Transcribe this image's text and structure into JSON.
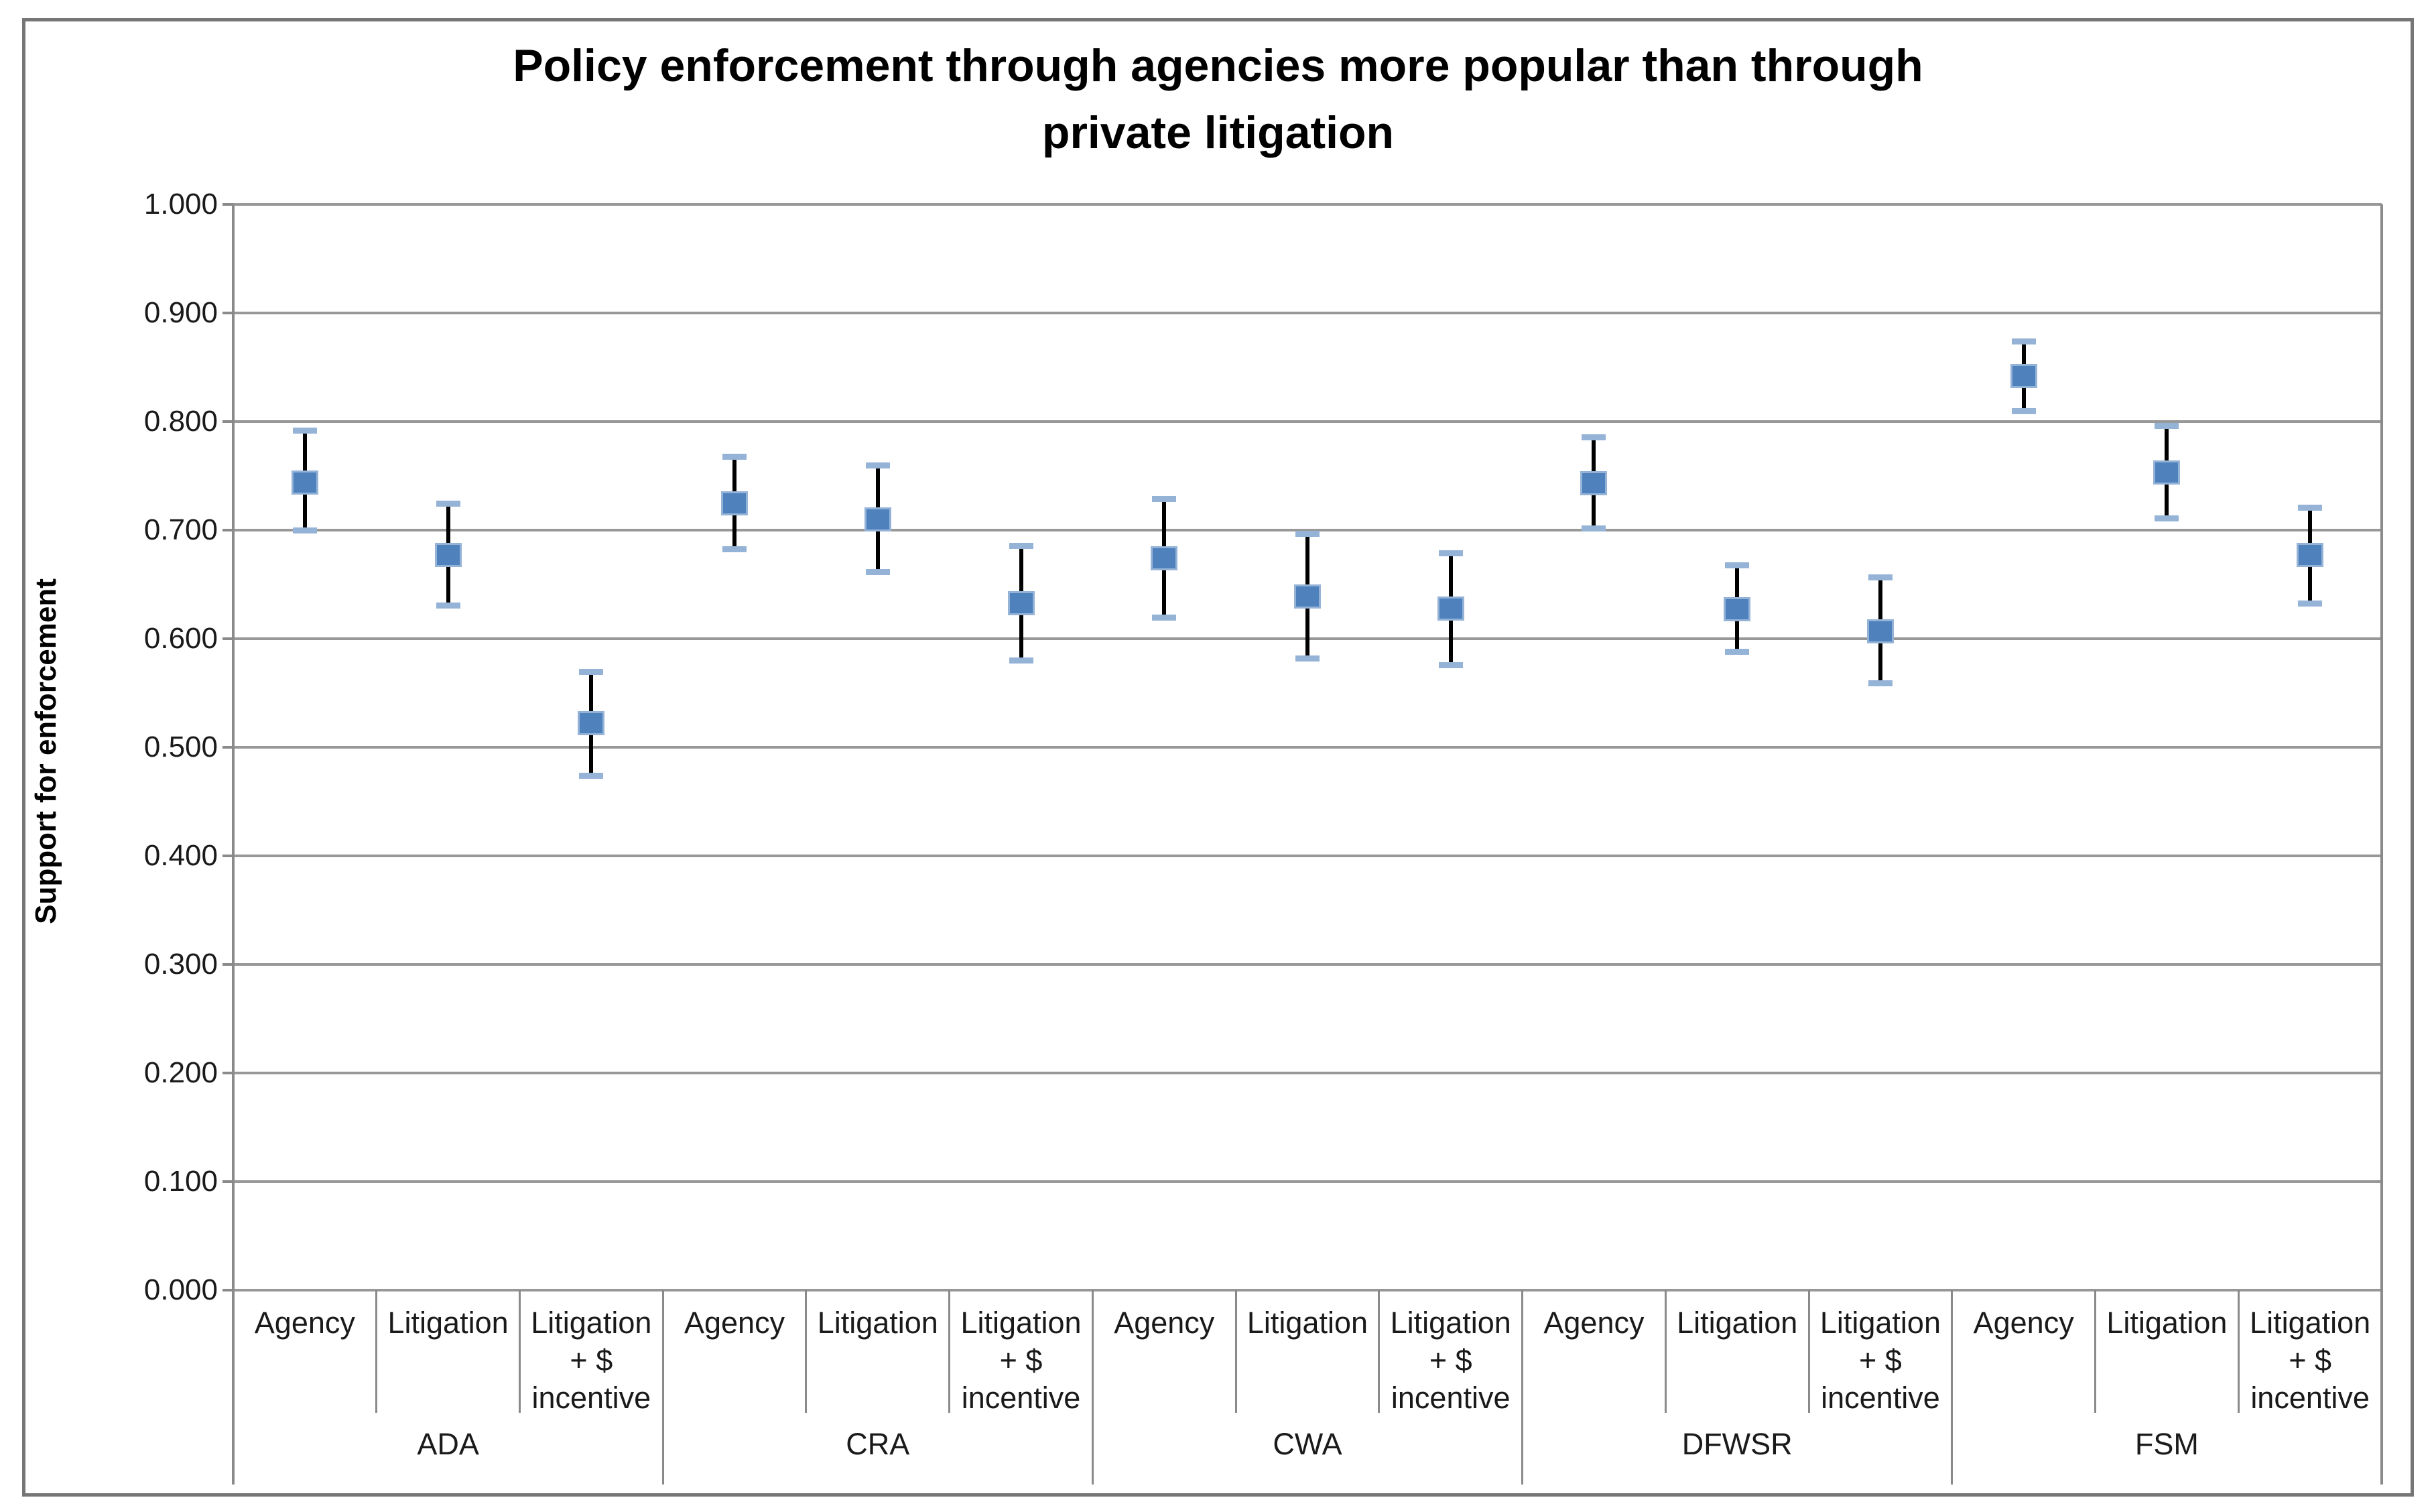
{
  "title": {
    "line1": "Policy enforcement through agencies more popular than through",
    "line2": "private litigation"
  },
  "y_axis": {
    "label": "Support for enforcement",
    "tick_labels": [
      "1.000",
      "0.900",
      "0.800",
      "0.700",
      "0.600",
      "0.500",
      "0.400",
      "0.300",
      "0.200",
      "0.100",
      "0.000"
    ]
  },
  "chart_data": {
    "type": "scatter",
    "title": "Policy enforcement through agencies more popular than through private litigation",
    "xlabel": "",
    "ylabel": "Support for enforcement",
    "ylim": [
      0.0,
      1.0
    ],
    "ytick_step": 0.1,
    "grid": true,
    "legend": false,
    "error_bars": true,
    "groups": [
      "ADA",
      "CRA",
      "CWA",
      "DFWSR",
      "FSM"
    ],
    "conditions": [
      "Agency",
      "Litigation",
      "Litigation + $ incentive"
    ],
    "condition_display_lines": [
      [
        "Agency"
      ],
      [
        "Litigation"
      ],
      [
        "Litigation",
        "+ $",
        "incentive"
      ]
    ],
    "series": [
      {
        "group": "ADA",
        "condition": "Agency",
        "value": 0.744,
        "ci_low": 0.7,
        "ci_high": 0.792
      },
      {
        "group": "ADA",
        "condition": "Litigation",
        "value": 0.677,
        "ci_low": 0.631,
        "ci_high": 0.725
      },
      {
        "group": "ADA",
        "condition": "Litigation + $ incentive",
        "value": 0.522,
        "ci_low": 0.474,
        "ci_high": 0.57
      },
      {
        "group": "CRA",
        "condition": "Agency",
        "value": 0.725,
        "ci_low": 0.683,
        "ci_high": 0.768
      },
      {
        "group": "CRA",
        "condition": "Litigation",
        "value": 0.71,
        "ci_low": 0.662,
        "ci_high": 0.76
      },
      {
        "group": "CRA",
        "condition": "Litigation + $ incentive",
        "value": 0.633,
        "ci_low": 0.58,
        "ci_high": 0.686
      },
      {
        "group": "CWA",
        "condition": "Agency",
        "value": 0.674,
        "ci_low": 0.62,
        "ci_high": 0.729
      },
      {
        "group": "CWA",
        "condition": "Litigation",
        "value": 0.639,
        "ci_low": 0.582,
        "ci_high": 0.697
      },
      {
        "group": "CWA",
        "condition": "Litigation + $ incentive",
        "value": 0.628,
        "ci_low": 0.576,
        "ci_high": 0.679
      },
      {
        "group": "DFWSR",
        "condition": "Agency",
        "value": 0.743,
        "ci_low": 0.702,
        "ci_high": 0.786
      },
      {
        "group": "DFWSR",
        "condition": "Litigation",
        "value": 0.627,
        "ci_low": 0.588,
        "ci_high": 0.668
      },
      {
        "group": "DFWSR",
        "condition": "Litigation + $ incentive",
        "value": 0.607,
        "ci_low": 0.559,
        "ci_high": 0.657
      },
      {
        "group": "FSM",
        "condition": "Agency",
        "value": 0.842,
        "ci_low": 0.81,
        "ci_high": 0.874
      },
      {
        "group": "FSM",
        "condition": "Litigation",
        "value": 0.753,
        "ci_low": 0.711,
        "ci_high": 0.796
      },
      {
        "group": "FSM",
        "condition": "Litigation + $ incentive",
        "value": 0.677,
        "ci_low": 0.633,
        "ci_high": 0.721
      }
    ],
    "colors": {
      "marker_fill": "#4F81BD",
      "marker_border": "#95B3D7",
      "error_bar_line": "#000000",
      "error_bar_cap": "#95B3D7",
      "gridline": "#989898",
      "axis": "#8a8a8a",
      "text": "#1a1a1a"
    }
  }
}
